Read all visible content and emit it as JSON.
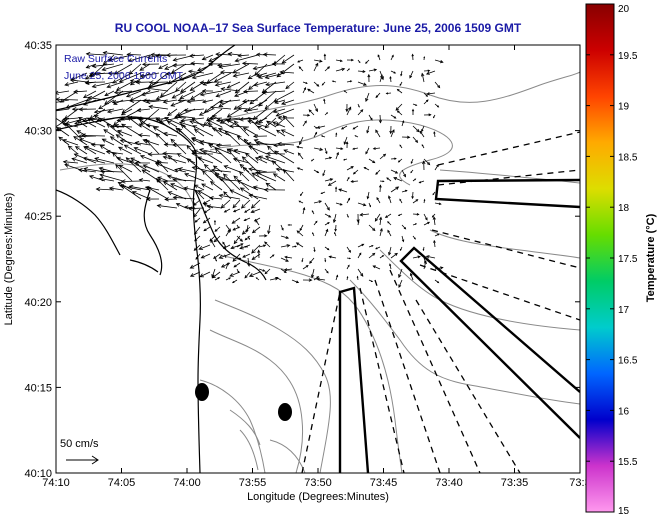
{
  "title": "RU COOL   NOAA–17  Sea Surface Temperature:  June 25, 2006 1509 GMT",
  "legend": {
    "line1": "Raw Surface Currents",
    "line2": "June 25, 2006 1500 GMT"
  },
  "scale_label": "50 cm/s",
  "axes": {
    "xlabel": "Longitude (Degrees:Minutes)",
    "ylabel": "Latitude (Degrees:Minutes)",
    "xticks": [
      "74:10",
      "74:05",
      "74:00",
      "73:55",
      "73:50",
      "73:45",
      "73:40",
      "73:35",
      "73:3"
    ],
    "yticks": [
      "40:35",
      "40:30",
      "40:25",
      "40:20",
      "40:15",
      "40:10"
    ]
  },
  "colorbar": {
    "title": "Temperature (°C)",
    "ticks": [
      "20",
      "19.5",
      "19",
      "18.5",
      "18",
      "17.5",
      "17",
      "16.5",
      "16",
      "15.5",
      "15"
    ],
    "min": 15,
    "max": 20,
    "colors": [
      "#ff99ee",
      "#cc33cc",
      "#0000cc",
      "#0066ff",
      "#00cccc",
      "#00cc66",
      "#66dd00",
      "#dddd00",
      "#ffaa00",
      "#ff4400",
      "#cc0000",
      "#880000"
    ]
  },
  "map_features": {
    "coastline": "NJ coast / Sandy Hook",
    "arrow_color": "#000000"
  }
}
